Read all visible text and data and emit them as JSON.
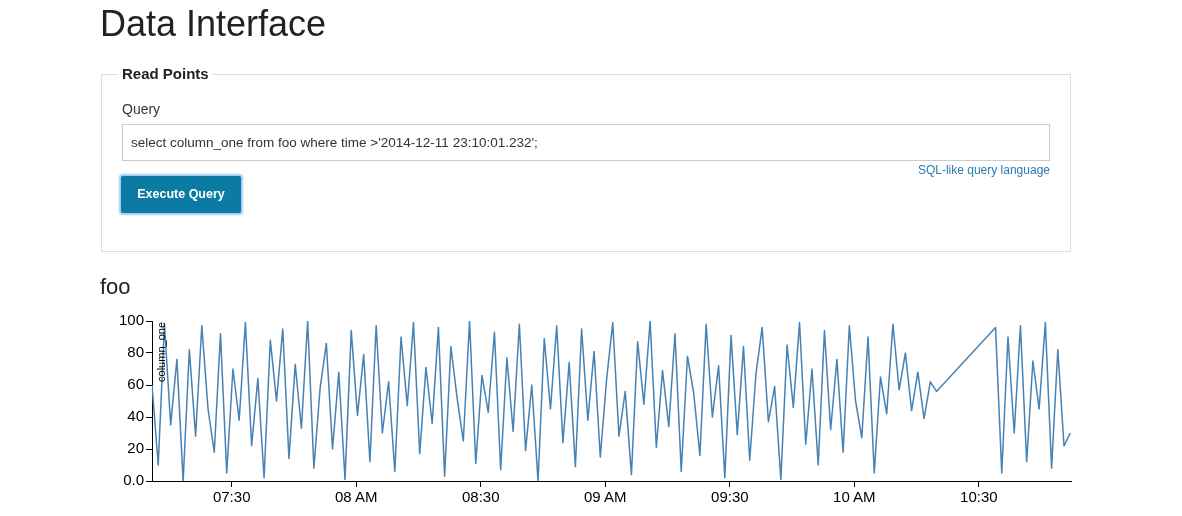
{
  "chart_data": {
    "type": "line",
    "title": "foo",
    "ylabel": "column_one",
    "annotations": [
      "Data Interface",
      "Read Points",
      "Query",
      "select column_one from foo where time >'2014-12-11 23:10:01.232';",
      "SQL-like query language",
      "Execute Query"
    ],
    "color": "#4682b4",
    "marker": "none",
    "x": [
      7.18,
      7.205,
      7.23,
      7.255,
      7.28,
      7.305,
      7.33,
      7.355,
      7.38,
      7.405,
      7.43,
      7.455,
      7.48,
      7.505,
      7.53,
      7.555,
      7.58,
      7.605,
      7.63,
      7.655,
      7.68,
      7.705,
      7.73,
      7.755,
      7.78,
      7.805,
      7.83,
      7.855,
      7.88,
      7.905,
      7.93,
      7.955,
      7.98,
      8.005,
      8.03,
      8.055,
      8.08,
      8.105,
      8.13,
      8.155,
      8.18,
      8.205,
      8.23,
      8.255,
      8.28,
      8.305,
      8.33,
      8.355,
      8.38,
      8.405,
      8.43,
      8.455,
      8.48,
      8.505,
      8.53,
      8.555,
      8.58,
      8.605,
      8.63,
      8.655,
      8.68,
      8.705,
      8.73,
      8.755,
      8.78,
      8.805,
      8.83,
      8.855,
      8.88,
      8.905,
      8.93,
      8.955,
      8.98,
      9.005,
      9.03,
      9.055,
      9.08,
      9.105,
      9.13,
      9.155,
      9.18,
      9.205,
      9.23,
      9.255,
      9.28,
      9.305,
      9.33,
      9.355,
      9.38,
      9.405,
      9.43,
      9.455,
      9.48,
      9.505,
      9.53,
      9.555,
      9.58,
      9.605,
      9.63,
      9.655,
      9.68,
      9.705,
      9.73,
      9.755,
      9.78,
      9.805,
      9.83,
      9.855,
      9.88,
      9.905,
      9.93,
      9.955,
      9.98,
      10.005,
      10.03,
      10.055,
      10.08,
      10.105,
      10.13,
      10.155,
      10.18,
      10.205,
      10.23,
      10.255,
      10.28,
      10.305,
      10.33,
      10.567,
      10.592,
      10.617,
      10.642,
      10.667,
      10.692,
      10.717,
      10.742,
      10.767,
      10.792,
      10.817,
      10.842,
      10.867
    ],
    "values": [
      60,
      10,
      98,
      35,
      76,
      0,
      82,
      28,
      97,
      45,
      18,
      92,
      5,
      70,
      38,
      99,
      22,
      64,
      2,
      88,
      50,
      95,
      14,
      73,
      33,
      100,
      8,
      58,
      86,
      20,
      68,
      1,
      94,
      41,
      79,
      12,
      97,
      30,
      62,
      6,
      90,
      47,
      99,
      17,
      71,
      36,
      96,
      3,
      84,
      52,
      25,
      100,
      11,
      66,
      43,
      93,
      7,
      77,
      31,
      98,
      19,
      60,
      0,
      89,
      45,
      97,
      24,
      74,
      9,
      95,
      38,
      81,
      15,
      63,
      99,
      28,
      56,
      4,
      87,
      48,
      100,
      21,
      69,
      34,
      92,
      6,
      78,
      55,
      16,
      98,
      40,
      72,
      2,
      91,
      29,
      84,
      13,
      67,
      96,
      37,
      59,
      1,
      85,
      46,
      99,
      23,
      70,
      10,
      94,
      32,
      76,
      18,
      97,
      50,
      27,
      90,
      5,
      65,
      42,
      98,
      57,
      80,
      44,
      68,
      39,
      62,
      56,
      96,
      5,
      90,
      30,
      97,
      12,
      75,
      45,
      99,
      8,
      82,
      22,
      30
    ],
    "xlim": [
      7.18,
      10.87
    ],
    "xticks": [
      {
        "value": 7.5,
        "label": "07:30"
      },
      {
        "value": 8,
        "label": "08 AM"
      },
      {
        "value": 8.5,
        "label": "08:30"
      },
      {
        "value": 9,
        "label": "09 AM"
      },
      {
        "value": 9.5,
        "label": "09:30"
      },
      {
        "value": 10,
        "label": "10 AM"
      },
      {
        "value": 10.5,
        "label": "10:30"
      }
    ],
    "ylim": [
      0,
      100
    ],
    "yticks": [
      {
        "value": 0,
        "label": "0.0"
      },
      20,
      40,
      60,
      80,
      100
    ]
  }
}
